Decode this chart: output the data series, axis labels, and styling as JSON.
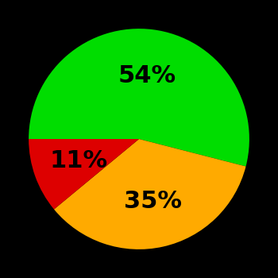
{
  "slices": [
    54,
    35,
    11
  ],
  "colors": [
    "#00dd00",
    "#ffaa00",
    "#dd0000"
  ],
  "labels": [
    "54%",
    "35%",
    "11%"
  ],
  "background_color": "#000000",
  "label_fontsize": 22,
  "label_fontweight": "bold",
  "startangle": 180,
  "label_r": 0.58
}
